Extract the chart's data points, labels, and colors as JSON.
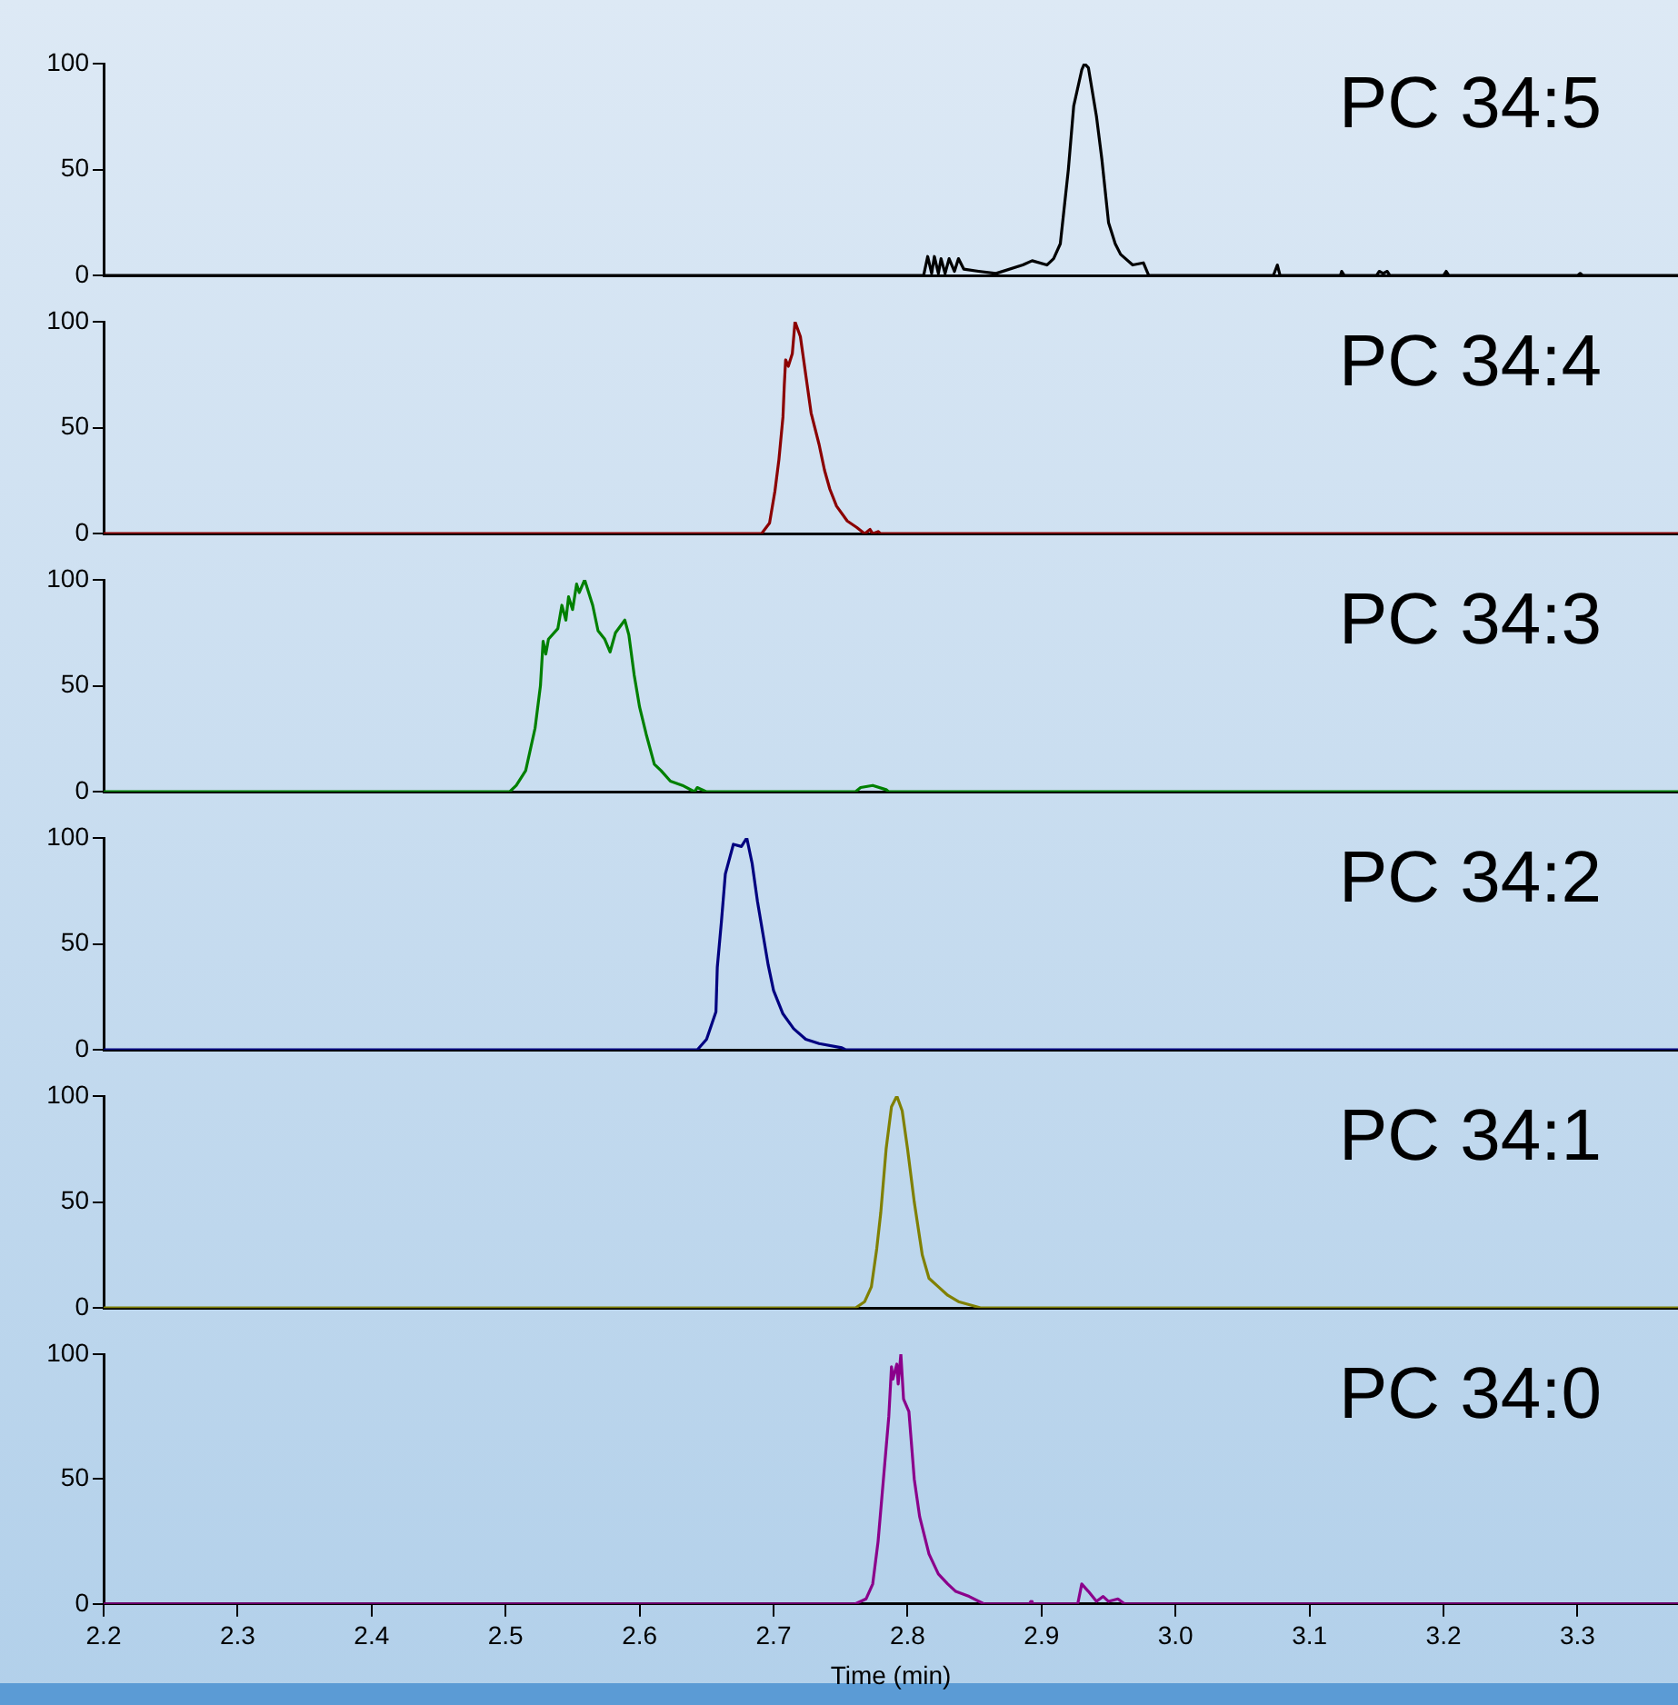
{
  "chart_data": [
    {
      "type": "line",
      "color": "#000000",
      "annotations": [
        "PC 34:5"
      ],
      "xlim": [
        2.2,
        3.375
      ],
      "ylim": [
        0,
        100
      ],
      "yticks": [
        0,
        50,
        100
      ],
      "tick_labels": "y",
      "x": [
        2.2,
        2.812,
        2.815,
        2.818,
        2.82,
        2.823,
        2.825,
        2.828,
        2.831,
        2.835,
        2.838,
        2.842,
        2.853,
        2.866,
        2.886,
        2.893,
        2.904,
        2.909,
        2.914,
        2.92,
        2.924,
        2.93,
        2.932,
        2.935,
        2.941,
        2.945,
        2.95,
        2.955,
        2.959,
        2.968,
        2.976,
        2.98,
        3.073,
        3.076,
        3.078,
        3.123,
        3.124,
        3.126,
        3.15,
        3.152,
        3.155,
        3.158,
        3.16,
        3.2,
        3.202,
        3.204,
        3.3,
        3.302,
        3.304,
        3.375
      ],
      "values": [
        0,
        0,
        9,
        1,
        9,
        1,
        8,
        1,
        8,
        2,
        8,
        3,
        2,
        1,
        5,
        7,
        5,
        8,
        15,
        50,
        80,
        97,
        100,
        98,
        75,
        55,
        25,
        15,
        10,
        5,
        6,
        0,
        0,
        5,
        0,
        0,
        2,
        0,
        0,
        2,
        1,
        2,
        0,
        0,
        2,
        0,
        0,
        1,
        0,
        0
      ]
    },
    {
      "type": "line",
      "color": "#8b0000",
      "annotations": [
        "PC 34:4"
      ],
      "xlim": [
        2.2,
        3.375
      ],
      "ylim": [
        0,
        100
      ],
      "yticks": [
        0,
        50,
        100
      ],
      "tick_labels": "y",
      "x": [
        2.2,
        2.691,
        2.697,
        2.701,
        2.704,
        2.707,
        2.708,
        2.709,
        2.711,
        2.714,
        2.716,
        2.72,
        2.724,
        2.728,
        2.734,
        2.738,
        2.742,
        2.747,
        2.755,
        2.762,
        2.768,
        2.772,
        2.774,
        2.778,
        2.78,
        3.375
      ],
      "values": [
        0,
        0,
        5,
        20,
        35,
        55,
        70,
        82,
        79,
        85,
        100,
        93,
        75,
        57,
        42,
        30,
        21,
        13,
        6,
        3,
        0,
        2,
        0,
        1,
        0,
        0
      ]
    },
    {
      "type": "line",
      "color": "#008000",
      "annotations": [
        "PC 34:3"
      ],
      "xlim": [
        2.2,
        3.375
      ],
      "ylim": [
        0,
        100
      ],
      "yticks": [
        0,
        50,
        100
      ],
      "tick_labels": "y",
      "x": [
        2.2,
        2.503,
        2.508,
        2.515,
        2.522,
        2.526,
        2.528,
        2.53,
        2.532,
        2.539,
        2.542,
        2.545,
        2.547,
        2.55,
        2.553,
        2.555,
        2.559,
        2.565,
        2.569,
        2.574,
        2.578,
        2.582,
        2.589,
        2.592,
        2.596,
        2.6,
        2.605,
        2.611,
        2.616,
        2.623,
        2.632,
        2.641,
        2.643,
        2.65,
        2.761,
        2.765,
        2.774,
        2.784,
        2.786,
        3.375
      ],
      "values": [
        0,
        0,
        3,
        10,
        30,
        50,
        71,
        65,
        72,
        77,
        88,
        81,
        92,
        86,
        98,
        94,
        100,
        88,
        76,
        72,
        66,
        75,
        81,
        74,
        55,
        40,
        27,
        13,
        10,
        5,
        3,
        0,
        2,
        0,
        0,
        2,
        3,
        1,
        0,
        0
      ]
    },
    {
      "type": "line",
      "color": "#000080",
      "annotations": [
        "PC 34:2"
      ],
      "xlim": [
        2.2,
        3.375
      ],
      "ylim": [
        0,
        100
      ],
      "yticks": [
        0,
        50,
        100
      ],
      "tick_labels": "y",
      "x": [
        2.2,
        2.643,
        2.65,
        2.657,
        2.658,
        2.661,
        2.664,
        2.67,
        2.676,
        2.68,
        2.684,
        2.688,
        2.692,
        2.696,
        2.7,
        2.707,
        2.715,
        2.724,
        2.734,
        2.751,
        2.754,
        3.375
      ],
      "values": [
        0,
        0,
        5,
        18,
        39,
        60,
        83,
        97,
        96,
        100,
        88,
        70,
        55,
        40,
        28,
        17,
        10,
        5,
        3,
        1,
        0,
        0
      ]
    },
    {
      "type": "line",
      "color": "#808000",
      "annotations": [
        "PC 34:1"
      ],
      "xlim": [
        2.2,
        3.375
      ],
      "ylim": [
        0,
        100
      ],
      "yticks": [
        0,
        50,
        100
      ],
      "tick_labels": "y",
      "x": [
        2.2,
        2.761,
        2.768,
        2.773,
        2.777,
        2.78,
        2.784,
        2.788,
        2.792,
        2.796,
        2.8,
        2.805,
        2.811,
        2.816,
        2.823,
        2.83,
        2.838,
        2.855,
        3.375
      ],
      "values": [
        0,
        0,
        3,
        10,
        28,
        45,
        75,
        95,
        100,
        93,
        75,
        50,
        25,
        14,
        10,
        6,
        3,
        0,
        0
      ]
    },
    {
      "type": "line",
      "color": "#8b008b",
      "annotations": [
        "PC 34:0"
      ],
      "xlim": [
        2.2,
        3.375
      ],
      "ylim": [
        0,
        100
      ],
      "yticks": [
        0,
        50,
        100
      ],
      "xticks": [
        2.2,
        2.3,
        2.4,
        2.5,
        2.6,
        2.7,
        2.8,
        2.9,
        {
          "value": 3,
          "label": "3.0"
        },
        3.1,
        3.2,
        3.3
      ],
      "xlabel": "Time (min)",
      "x": [
        2.2,
        2.761,
        2.769,
        2.774,
        2.778,
        2.782,
        2.786,
        2.788,
        2.789,
        2.792,
        2.793,
        2.795,
        2.797,
        2.801,
        2.805,
        2.809,
        2.816,
        2.823,
        2.83,
        2.836,
        2.846,
        2.857,
        2.891,
        2.892,
        2.893,
        2.927,
        2.93,
        2.935,
        2.941,
        2.946,
        2.95,
        2.957,
        2.962,
        3.375
      ],
      "values": [
        0,
        0,
        2,
        8,
        25,
        50,
        75,
        95,
        90,
        96,
        88,
        100,
        82,
        77,
        50,
        35,
        20,
        12,
        8,
        5,
        3,
        0,
        0,
        1,
        0,
        0,
        8,
        5,
        1,
        3,
        1,
        2,
        0,
        0
      ]
    }
  ]
}
